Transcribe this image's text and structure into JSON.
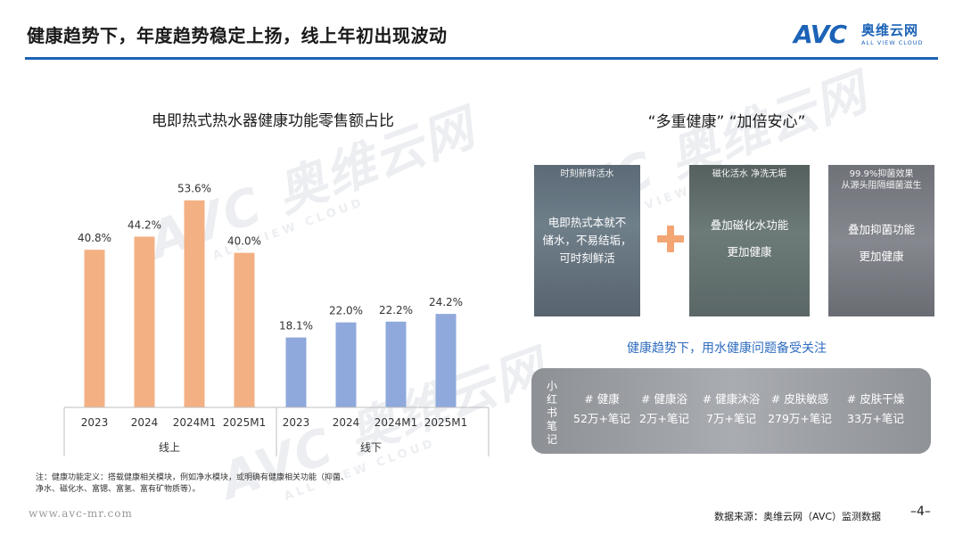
{
  "header": {
    "title": "健康趋势下，年度趋势稳定上扬，线上年初出现波动",
    "logo_mark": "AVC",
    "logo_cn": "奥维云网",
    "logo_en": "ALL VIEW CLOUD"
  },
  "watermark": {
    "main": "AVC 奥维云网",
    "sub": "ALL VIEW CLOUD"
  },
  "chart_data": {
    "type": "bar",
    "title": "电即热式热水器健康功能零售额占比",
    "categories": [
      "2023",
      "2024",
      "2024M1",
      "2025M1",
      "2023",
      "2024",
      "2024M1",
      "2025M1"
    ],
    "groups": [
      {
        "name": "线上",
        "color": "#f3b083",
        "values": [
          40.8,
          44.2,
          53.6,
          40.0
        ],
        "labels": [
          "40.8%",
          "44.2%",
          "53.6%",
          "40.0%"
        ]
      },
      {
        "name": "线下",
        "color": "#8fa9dc",
        "values": [
          18.1,
          22.0,
          22.2,
          24.2
        ],
        "labels": [
          "18.1%",
          "22.0%",
          "22.2%",
          "24.2%"
        ]
      }
    ],
    "ylim": [
      0,
      60
    ],
    "grid": false,
    "legend": "none"
  },
  "note": {
    "line1": "注：健康功能定义：搭载健康相关模块，例如净水模块，或明确有健康相关功能（抑菌、",
    "line2": "净水、磁化水、富锶、富氢、富有矿物质等）。"
  },
  "website": "www.avc-mr.com",
  "right": {
    "title": "“多重健康” “加倍安心”",
    "panels": [
      {
        "header": "时刻新鲜活水",
        "overlay": [
          "电即热式本就不",
          "储水，不易结垢，",
          "可时刻鲜活"
        ]
      },
      {
        "header": "磁化活水 净洗无垢",
        "overlay": [
          "叠加磁化水功能",
          "更加健康"
        ]
      },
      {
        "header": "99.9%抑菌效果\n从源头阻隔细菌滋生",
        "overlay": [
          "叠加抑菌功能",
          "更加健康"
        ]
      }
    ],
    "plus_icon": "plus-icon",
    "subheading": "健康趋势下，用水健康问题备受关注",
    "xhs": {
      "platform_chars": [
        "小",
        "红",
        "书",
        "笔",
        "记"
      ],
      "items": [
        {
          "tag": "# 健康",
          "count": "52万+笔记"
        },
        {
          "tag": "# 健康浴",
          "count": "2万+笔记"
        },
        {
          "tag": "# 健康沐浴",
          "count": "7万+笔记"
        },
        {
          "tag": "# 皮肤敏感",
          "count": "279万+笔记"
        },
        {
          "tag": "# 皮肤干燥",
          "count": "33万+笔记"
        }
      ]
    }
  },
  "footer": {
    "source": "数据来源：奥维云网（AVC）监测数据",
    "page": "–4–"
  }
}
